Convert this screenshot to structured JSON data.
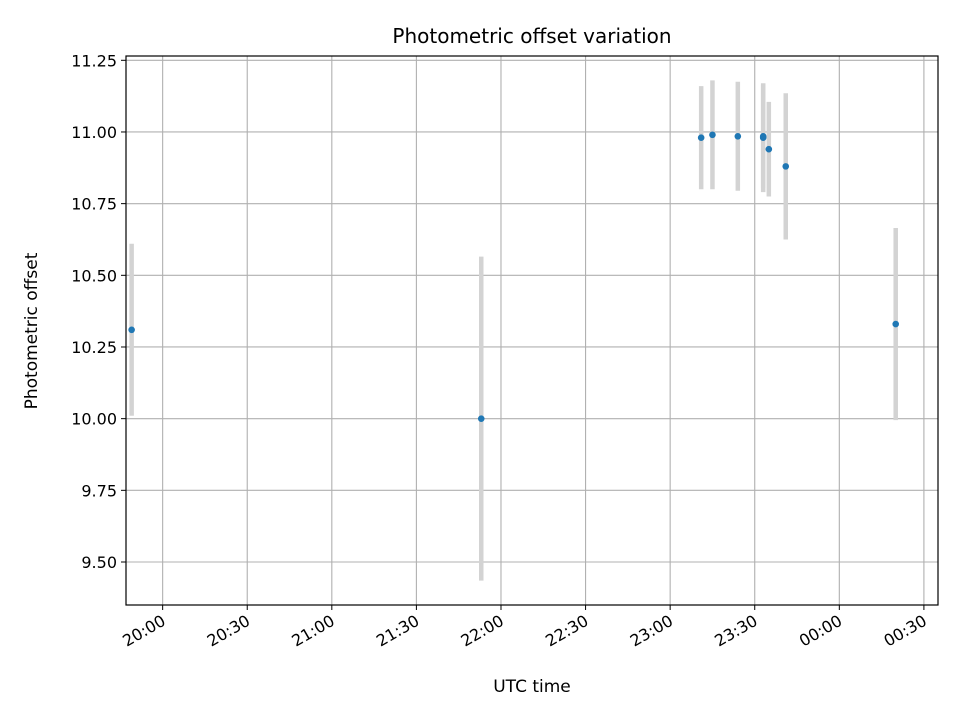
{
  "chart_data": {
    "type": "scatter",
    "title": "Photometric offset variation",
    "xlabel": "UTC time",
    "ylabel": "Photometric offset",
    "grid": true,
    "x_axis": {
      "min": "19:47",
      "max": "00:35",
      "ticks": [
        "20:00",
        "20:30",
        "21:00",
        "21:30",
        "22:00",
        "22:30",
        "23:00",
        "23:30",
        "00:00",
        "00:30"
      ]
    },
    "y_axis": {
      "min": 9.35,
      "max": 11.265,
      "ticks": [
        "9.50",
        "9.75",
        "10.00",
        "10.25",
        "10.50",
        "10.75",
        "11.00",
        "11.25"
      ]
    },
    "series": [
      {
        "marker_color": "#1f77b4",
        "errorbar_color": "#d3d3d3",
        "points": [
          {
            "x": "19:49",
            "y": 10.31,
            "err": 0.3
          },
          {
            "x": "21:53",
            "y": 10.0,
            "err": 0.565
          },
          {
            "x": "23:11",
            "y": 10.98,
            "err": 0.18
          },
          {
            "x": "23:15",
            "y": 10.99,
            "err": 0.19
          },
          {
            "x": "23:24",
            "y": 10.985,
            "err": 0.19
          },
          {
            "x": "23:33",
            "y": 10.98,
            "err": 0.19
          },
          {
            "x": "23:33",
            "y": 10.985,
            "err": 0.18
          },
          {
            "x": "23:35",
            "y": 10.94,
            "err": 0.165
          },
          {
            "x": "23:41",
            "y": 10.88,
            "err": 0.255
          },
          {
            "x": "00:20",
            "y": 10.33,
            "err": 0.335
          }
        ]
      }
    ]
  }
}
